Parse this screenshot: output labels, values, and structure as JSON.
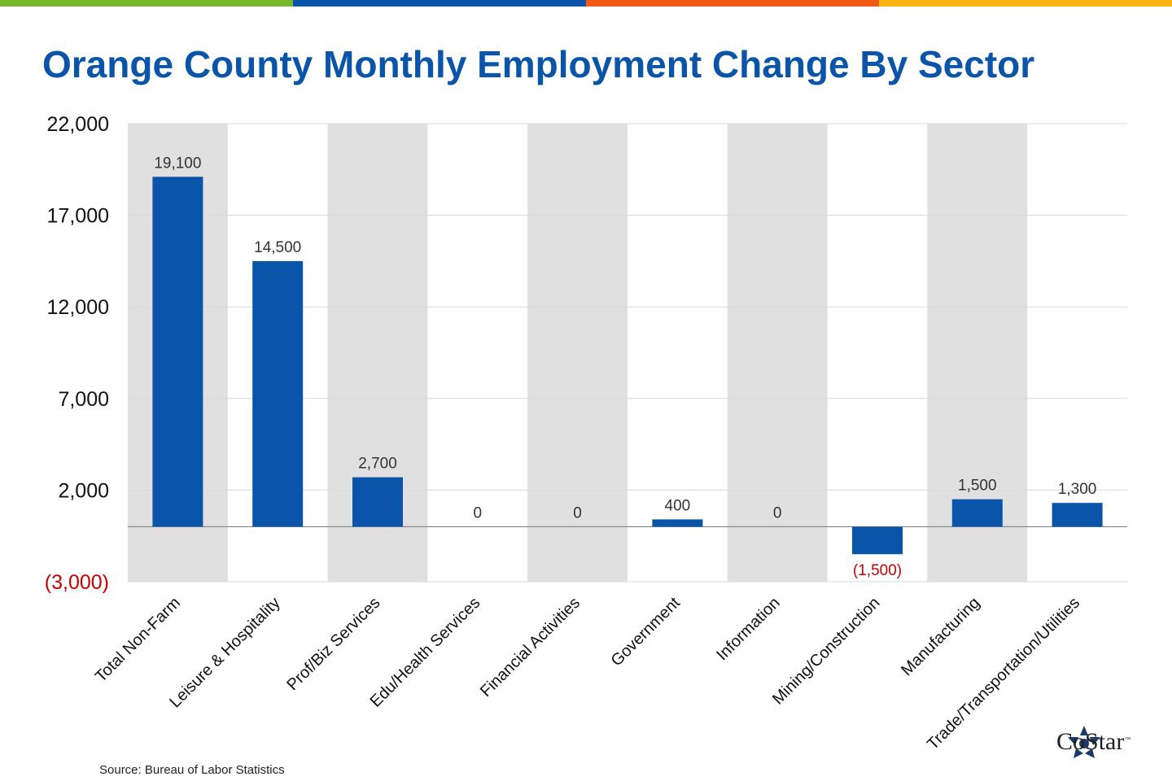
{
  "topbar_colors": [
    "#76b82a",
    "#0a55aa",
    "#f05a14",
    "#fbb616"
  ],
  "title": "Orange County Monthly Employment Change By Sector",
  "source": "Source: Bureau of Labor Statistics",
  "logo": {
    "text": "CoStar",
    "tm": "™",
    "icon": "costar-star-icon"
  },
  "colors": {
    "bar": "#0a55aa",
    "negative": "#cc0000",
    "band": "#e0e0e0",
    "grid": "#d9d9d9",
    "axis": "#808080",
    "label": "#333333"
  },
  "chart_data": {
    "type": "bar",
    "title": "Orange County Monthly Employment Change By Sector",
    "categories": [
      "Total Non-Farm",
      "Leisure & Hospitality",
      "Prof/Biz Services",
      "Edu/Health Services",
      "Financial Activities",
      "Government",
      "Information",
      "Mining/Construction",
      "Manufacturing",
      "Trade/Transportation/Utilities"
    ],
    "values": [
      19100,
      14500,
      2700,
      0,
      0,
      400,
      0,
      -1500,
      1500,
      1300
    ],
    "value_labels": [
      "19,100",
      "14,500",
      "2,700",
      "0",
      "0",
      "400",
      "0",
      "(1,500)",
      "1,500",
      "1,300"
    ],
    "ylim": [
      -3000,
      22000
    ],
    "yticks": [
      22000,
      17000,
      12000,
      7000,
      2000,
      -3000
    ],
    "ytick_labels": [
      "22,000",
      "17,000",
      "12,000",
      "7,000",
      "2,000",
      "(3,000)"
    ],
    "xlabel": "",
    "ylabel": "",
    "grid": true,
    "alternating_bands": true,
    "legend": "none"
  }
}
